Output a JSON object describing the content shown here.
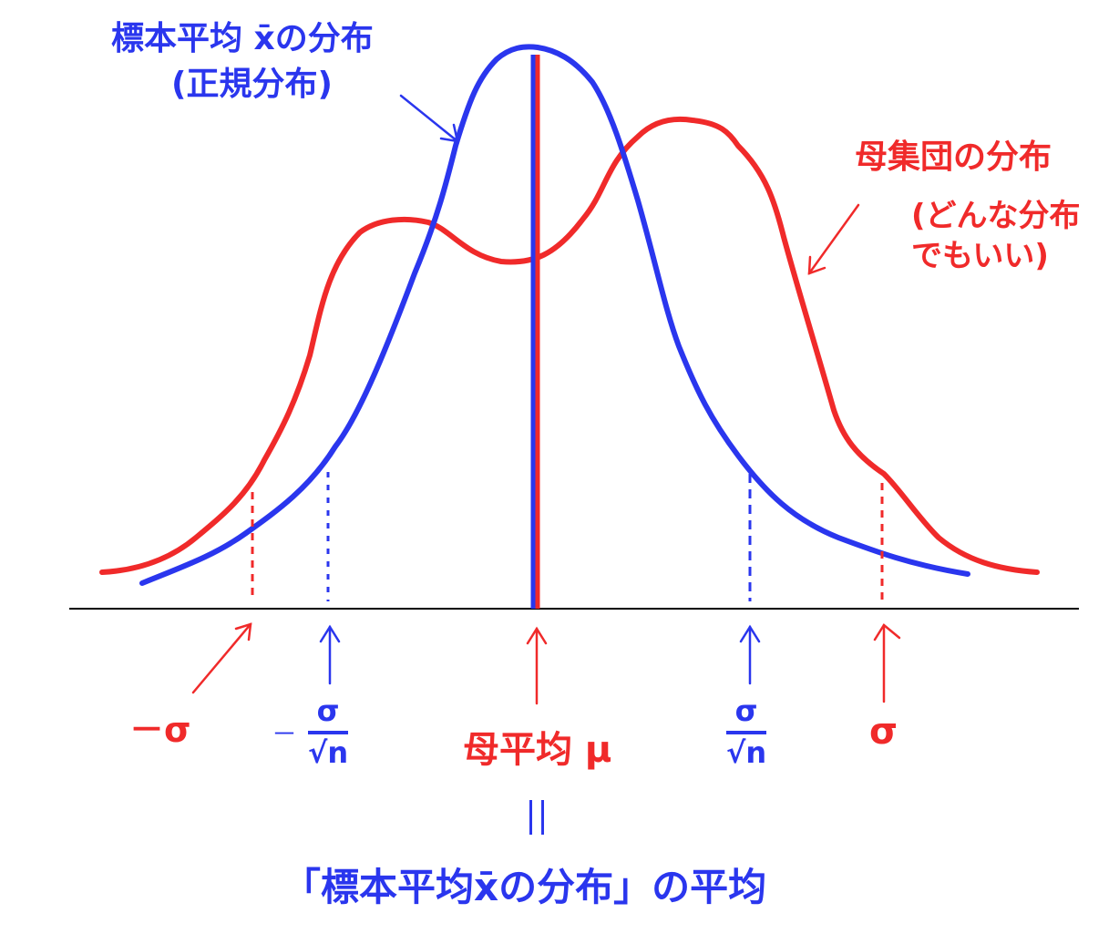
{
  "labels": {
    "sample_dist_line1": "標本平均 x̄の分布",
    "sample_dist_line2": "(正規分布)",
    "population_dist": "母集団の分布",
    "population_note_line1": "(どんな分布",
    "population_note_line2": "でもいい)",
    "minus_sigma": "－σ",
    "minus_sign": "－",
    "sigma": "σ",
    "sqrt_n": "√n",
    "pop_mean": "母平均 μ",
    "bottom_caption": "「標本平均x̄の分布」の平均"
  },
  "colors": {
    "sample": "#2a36ee",
    "population": "#f02a2a",
    "axis": "#000000"
  }
}
